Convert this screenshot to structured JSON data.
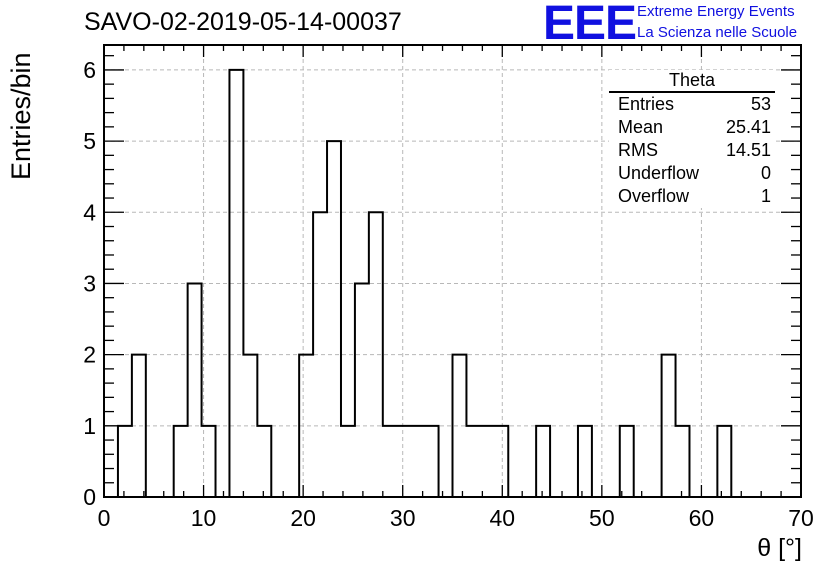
{
  "title": "SAVO-02-2019-05-14-00037",
  "logo": {
    "text": "EEE",
    "line1": "Extreme Energy Events",
    "line2": "La Scienza nelle Scuole",
    "color": "#1010e0"
  },
  "stats": {
    "name": "Theta",
    "rows": [
      {
        "label": "Entries",
        "value": "53"
      },
      {
        "label": "Mean",
        "value": "25.41"
      },
      {
        "label": "RMS",
        "value": "14.51"
      },
      {
        "label": "Underflow",
        "value": "0"
      },
      {
        "label": "Overflow",
        "value": "1"
      }
    ]
  },
  "chart_data": {
    "type": "histogram",
    "xlabel": "θ [°]",
    "ylabel": "Entries/bin",
    "xlim": [
      0,
      70
    ],
    "ylim": [
      0,
      6.35
    ],
    "bin_width": 1.4,
    "bin_start": 0,
    "x_ticks": [
      0,
      10,
      20,
      30,
      40,
      50,
      60,
      70
    ],
    "y_ticks": [
      0,
      1,
      2,
      3,
      4,
      5,
      6
    ],
    "grid": true,
    "legend_position": "top-right",
    "counts": [
      0,
      1,
      2,
      0,
      0,
      1,
      3,
      1,
      0,
      6,
      2,
      1,
      0,
      0,
      2,
      4,
      5,
      1,
      3,
      4,
      1,
      1,
      1,
      1,
      0,
      2,
      1,
      1,
      1,
      0,
      0,
      1,
      0,
      0,
      1,
      0,
      0,
      1,
      0,
      0,
      2,
      1,
      0,
      0,
      1,
      0,
      0,
      0,
      0,
      0
    ]
  }
}
